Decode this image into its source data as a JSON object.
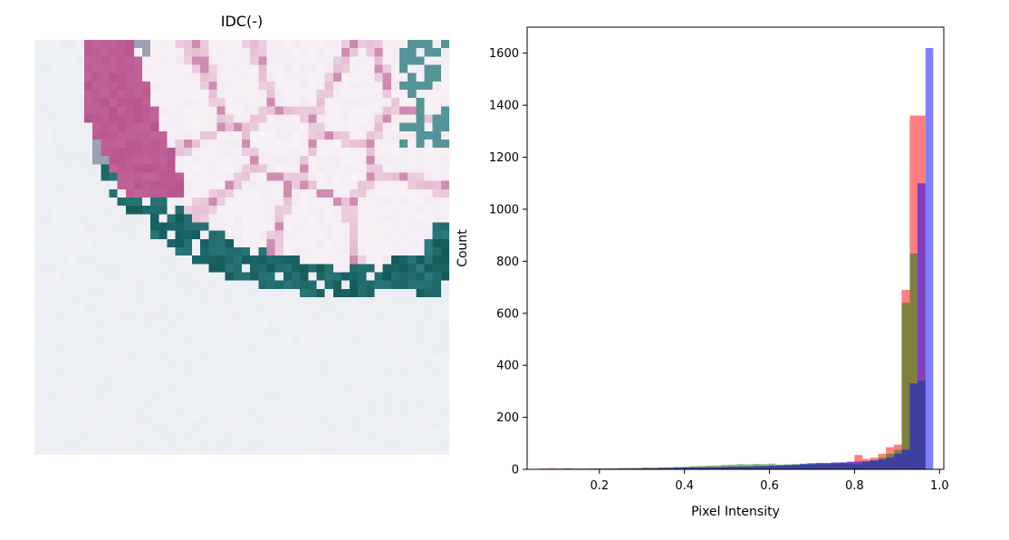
{
  "image_panel": {
    "title": "IDC(-)",
    "colors": {
      "background": "#eef0f4",
      "pink_dense": "#b7558d",
      "pink_light": "#e4b7d0",
      "teal": "#2f7e80",
      "teal_dark": "#135a58"
    }
  },
  "chart_data": {
    "type": "bar",
    "title": "",
    "xlabel": "Pixel Intensity",
    "ylabel": "Count",
    "xlim": [
      0.03,
      1.01
    ],
    "ylim": [
      0,
      1700
    ],
    "xticks": [
      0.2,
      0.4,
      0.6,
      0.8,
      1.0
    ],
    "xtick_labels": [
      "0.2",
      "0.4",
      "0.6",
      "0.8",
      "1.0"
    ],
    "yticks": [
      0,
      200,
      400,
      600,
      800,
      1000,
      1200,
      1400,
      1600
    ],
    "ytick_labels": [
      "0",
      "200",
      "400",
      "600",
      "800",
      "1000",
      "1200",
      "1400",
      "1600"
    ],
    "grid": false,
    "bin_edges": [
      0.06,
      0.079,
      0.097,
      0.116,
      0.134,
      0.153,
      0.171,
      0.19,
      0.208,
      0.227,
      0.245,
      0.264,
      0.282,
      0.301,
      0.319,
      0.338,
      0.356,
      0.375,
      0.393,
      0.412,
      0.43,
      0.449,
      0.467,
      0.486,
      0.504,
      0.523,
      0.541,
      0.56,
      0.578,
      0.597,
      0.615,
      0.634,
      0.652,
      0.671,
      0.689,
      0.708,
      0.726,
      0.745,
      0.763,
      0.782,
      0.8,
      0.819,
      0.837,
      0.856,
      0.874,
      0.893,
      0.911,
      0.93,
      0.948,
      0.967,
      0.985
    ],
    "series": [
      {
        "color": "#ff0000",
        "values": [
          3,
          4,
          3,
          4,
          2,
          3,
          3,
          4,
          3,
          4,
          5,
          4,
          5,
          6,
          5,
          6,
          6,
          7,
          7,
          8,
          8,
          9,
          9,
          10,
          11,
          12,
          11,
          13,
          13,
          14,
          15,
          16,
          16,
          18,
          18,
          20,
          20,
          22,
          25,
          30,
          55,
          40,
          45,
          60,
          85,
          95,
          690,
          1360,
          1360,
          0
        ]
      },
      {
        "color": "#008000",
        "values": [
          2,
          2,
          2,
          3,
          3,
          2,
          3,
          3,
          4,
          3,
          4,
          5,
          5,
          6,
          6,
          7,
          8,
          9,
          10,
          12,
          13,
          14,
          15,
          17,
          18,
          20,
          19,
          21,
          20,
          22,
          18,
          19,
          20,
          22,
          24,
          25,
          24,
          26,
          24,
          22,
          20,
          28,
          35,
          45,
          60,
          75,
          640,
          830,
          340,
          0
        ]
      },
      {
        "color": "#0000ff",
        "values": [
          0,
          0,
          0,
          0,
          0,
          0,
          1,
          1,
          1,
          2,
          2,
          3,
          3,
          4,
          4,
          5,
          5,
          6,
          6,
          7,
          7,
          8,
          8,
          9,
          10,
          10,
          11,
          12,
          13,
          14,
          15,
          16,
          18,
          20,
          22,
          24,
          24,
          26,
          27,
          28,
          30,
          32,
          35,
          38,
          45,
          60,
          75,
          330,
          1100,
          1620
        ]
      }
    ]
  }
}
